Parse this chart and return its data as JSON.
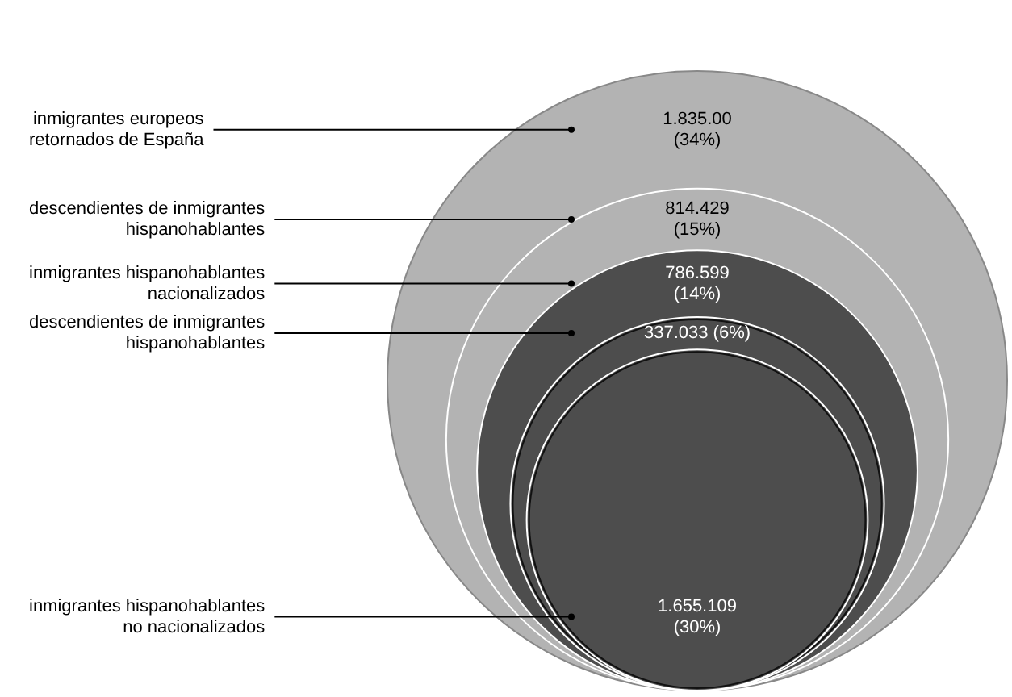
{
  "chart_data": {
    "type": "other",
    "categories": [
      "inmigrantes europeos\nretornados de España",
      "descendientes de inmigrantes\nhispanohablantes",
      "inmigrantes hispanohablantes\nnacionalizados",
      "descendientes de inmigrantes\nhispanohablantes",
      "inmigrantes hispanohablantes\nno nacionalizados"
    ],
    "values": [
      34,
      15,
      14,
      6,
      30
    ],
    "value_labels": [
      "1.835.00\n(34%)",
      "814.429\n(15%)",
      "786.599\n(14%)",
      "337.033\n(6%)",
      "1.655.109\n(30%)"
    ],
    "colors": [
      "#b3b3b3",
      "#b3b3b3",
      "#4d4d4d",
      "#4d4d4d",
      "#4d4d4d"
    ]
  }
}
